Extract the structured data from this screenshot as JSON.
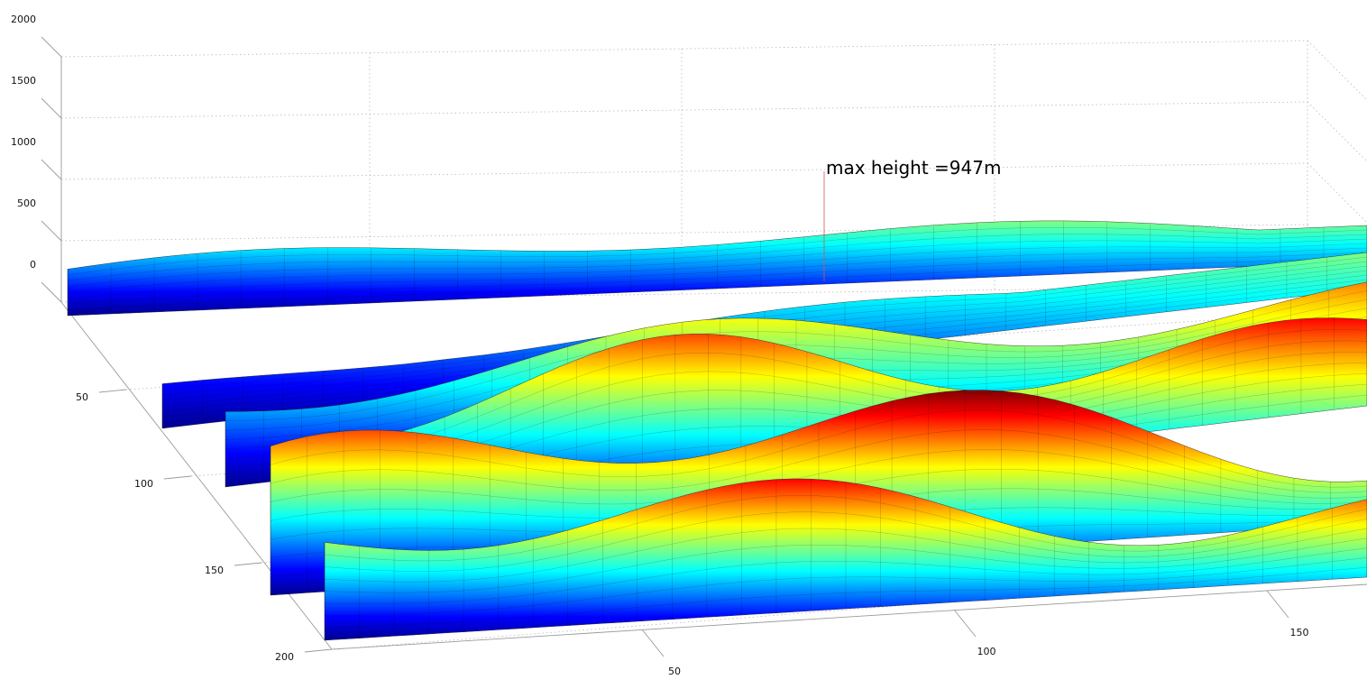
{
  "chart_data": {
    "type": "surface",
    "title": "",
    "xlabel": "",
    "ylabel": "",
    "zlabel": "",
    "z_ticks": [
      0,
      500,
      1000,
      1500,
      2000
    ],
    "y_ticks": [
      50,
      100,
      150,
      200
    ],
    "x_ticks": [
      50,
      100,
      150
    ],
    "zlim": [
      0,
      2000
    ],
    "grid": true,
    "colormap": "jet",
    "colormap_stops": [
      "#00008f",
      "#0000ff",
      "#0080ff",
      "#00ffff",
      "#80ff80",
      "#ffff00",
      "#ff8000",
      "#ff0000",
      "#800000"
    ],
    "max_height": 947,
    "annotation": "max height =947m",
    "ridges": [
      {
        "rel_peak": 0.55
      },
      {
        "rel_peak": 0.45
      },
      {
        "rel_peak": 0.72
      },
      {
        "rel_peak": 0.95
      },
      {
        "rel_peak": 0.9
      },
      {
        "rel_peak": 0.85
      }
    ]
  }
}
